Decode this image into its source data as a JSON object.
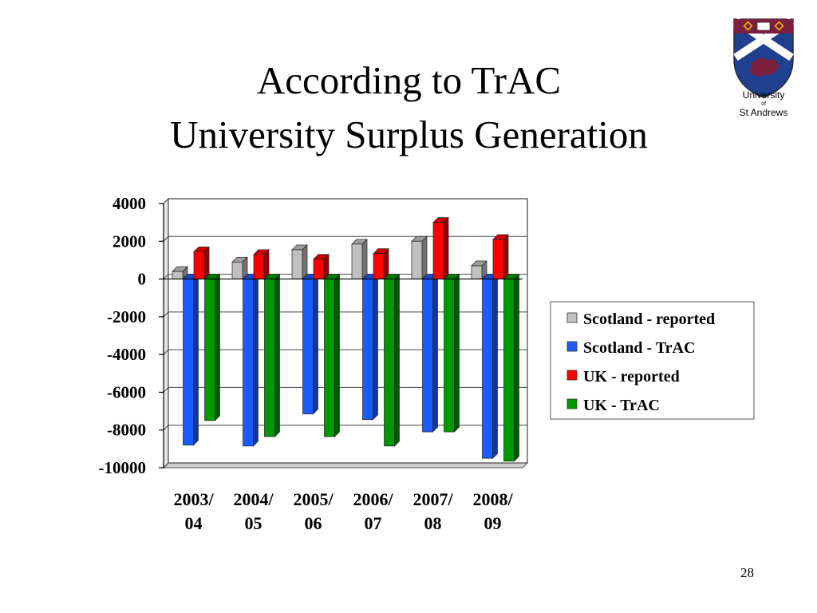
{
  "slide": {
    "title_line1": "According to TrAC",
    "title_line2": "University Surplus Generation",
    "page_number": "28"
  },
  "logo": {
    "line1": "University",
    "line2": "of",
    "line3": "St Andrews"
  },
  "colors": {
    "scotland_reported": "#c0c0c0",
    "scotland_trac": "#1a5cff",
    "uk_reported": "#ff0000",
    "uk_trac": "#009900"
  },
  "chart_data": {
    "type": "bar",
    "style": "3d-clustered",
    "categories": [
      [
        "2003/",
        "04"
      ],
      [
        "2004/",
        "05"
      ],
      [
        "2005/",
        "06"
      ],
      [
        "2006/",
        "07"
      ],
      [
        "2007/",
        "08"
      ],
      [
        "2008/",
        "09"
      ]
    ],
    "series": [
      {
        "name": "Scotland - reported",
        "color": "#c0c0c0",
        "values": [
          400,
          900,
          1550,
          1850,
          2000,
          700
        ]
      },
      {
        "name": "Scotland - TrAC",
        "color": "#1a5cff",
        "values": [
          -8800,
          -8850,
          -7150,
          -7450,
          -8100,
          -9500
        ]
      },
      {
        "name": "UK - reported",
        "color": "#ff0000",
        "values": [
          1450,
          1300,
          1050,
          1350,
          3000,
          2100
        ]
      },
      {
        "name": "UK - TrAC",
        "color": "#009900",
        "values": [
          -7500,
          -8350,
          -8350,
          -8850,
          -8100,
          -9650
        ]
      }
    ],
    "yticks": [
      4000,
      2000,
      0,
      -2000,
      -4000,
      -6000,
      -8000,
      -10000
    ],
    "ylim": [
      -10000,
      4000
    ],
    "grid": true,
    "legend_position": "right"
  }
}
